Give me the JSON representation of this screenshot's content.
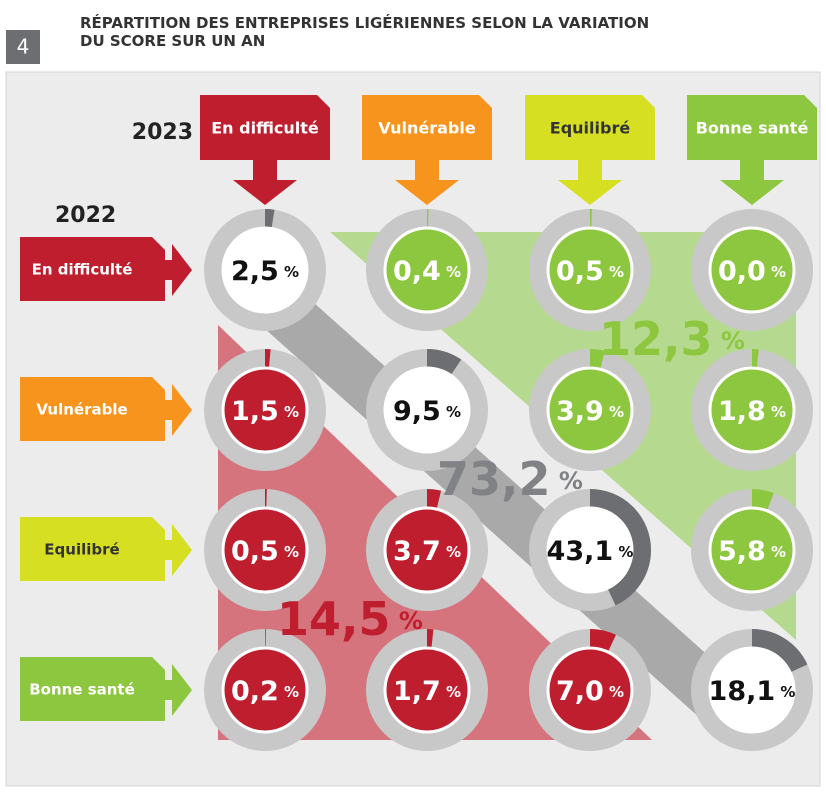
{
  "chart_data": {
    "type": "transition-matrix",
    "figure_number": "4",
    "title": [
      "RÉPARTITION DES ENTREPRISES LIGÉRIENNES SELON LA VARIATION",
      "DU SCORE SUR UN AN"
    ],
    "col_axis_label": "2023",
    "row_axis_label": "2022",
    "categories": [
      "En difficulté",
      "Vulnérable",
      "Equilibré",
      "Bonne santé"
    ],
    "category_colors": [
      "#be1e2d",
      "#f7941d",
      "#d7df23",
      "#8dc63f"
    ],
    "values": [
      [
        2.5,
        0.4,
        0.5,
        0.0
      ],
      [
        1.5,
        9.5,
        3.9,
        1.8
      ],
      [
        0.5,
        3.7,
        43.1,
        5.8
      ],
      [
        0.2,
        1.7,
        7.0,
        18.1
      ]
    ],
    "value_labels": [
      [
        "2,5 %",
        "0,4 %",
        "0,5 %",
        "0,0 %"
      ],
      [
        "1,5 %",
        "9,5 %",
        "3,9 %",
        "1,8 %"
      ],
      [
        "0,5 %",
        "3,7 %",
        "43,1 %",
        "5,8 %"
      ],
      [
        "0,2 %",
        "1,7 %",
        "7,0 %",
        "18,1 %"
      ]
    ],
    "zone_colors": {
      "lower": "#be1e2d",
      "diagonal": "#6d6e71",
      "upper": "#8dc63f"
    },
    "totals": {
      "values": [
        12.3,
        73.2,
        14.5
      ],
      "value_labels": [
        "12,3 %",
        "73,2 %",
        "14,5 %"
      ]
    }
  }
}
